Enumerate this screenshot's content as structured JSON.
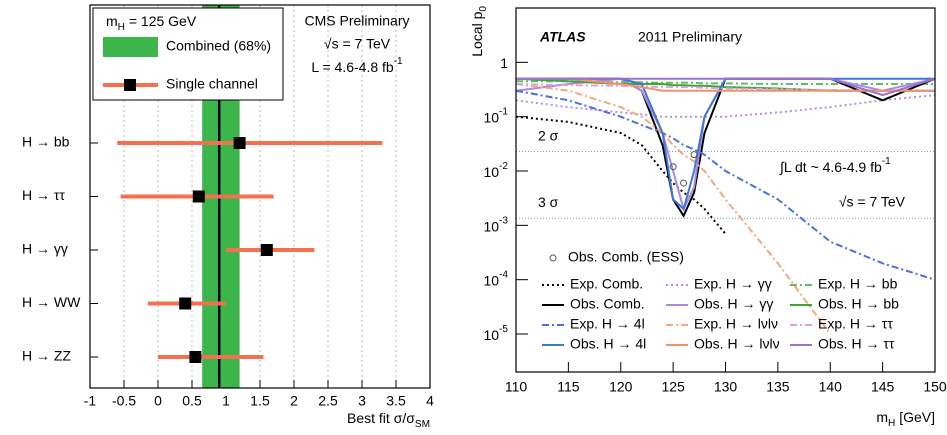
{
  "chart_data": [
    {
      "type": "errorbar",
      "categories": [
        "H → bb",
        "H → ττ",
        "H → γγ",
        "H → WW",
        "H → ZZ"
      ],
      "series": [
        {
          "name": "Single channel",
          "color": "#f4704f",
          "values": [
            1.2,
            0.6,
            1.6,
            0.4,
            0.55
          ],
          "low": [
            -0.6,
            -0.55,
            1.0,
            -0.15,
            0.0
          ],
          "high": [
            3.3,
            1.7,
            2.3,
            1.0,
            1.55
          ]
        }
      ],
      "band": {
        "name": "Combined  (68%)",
        "color": "#3cb54a",
        "low": 0.65,
        "high": 1.2,
        "value": 0.9
      },
      "annotations": {
        "legend_title": [
          "m",
          {
            "sub": "H"
          },
          " = 125 GeV"
        ],
        "experiment": "CMS Preliminary",
        "energy": "√s = 7 TeV",
        "lumi": [
          "L = 4.6-4.8 fb",
          {
            "sup": "-1"
          }
        ]
      },
      "xlabel": [
        "Best fit σ/σ",
        {
          "sub": "SM"
        }
      ],
      "xlim": [
        -1,
        4
      ],
      "xticks": [
        -1,
        -0.5,
        0,
        0.5,
        1,
        1.5,
        2,
        2.5,
        3,
        3.5,
        4
      ],
      "grid": true
    },
    {
      "type": "line",
      "annotations": {
        "experiment": "ATLAS",
        "subtitle": "2011 Preliminary",
        "lumi": [
          "∫",
          "L dt ~ 4.6-4.9 fb",
          {
            "sup": "-1"
          }
        ],
        "energy": "√s = 7 TeV"
      },
      "ylabel": [
        "Local p",
        {
          "sub": "0"
        }
      ],
      "xlabel": [
        "m",
        {
          "sub": "H"
        },
        " [GeV]"
      ],
      "log_y": true,
      "xlim": [
        110,
        150
      ],
      "ylim": [
        2e-06,
        10
      ],
      "xticks": [
        110,
        115,
        120,
        125,
        130,
        135,
        140,
        145,
        150
      ],
      "yticks": [
        {
          "value": 1e-05,
          "label": [
            "10",
            {
              "sup": "-5"
            }
          ]
        },
        {
          "value": 0.0001,
          "label": [
            "10",
            {
              "sup": "-4"
            }
          ]
        },
        {
          "value": 0.001,
          "label": [
            "10",
            {
              "sup": "-3"
            }
          ]
        },
        {
          "value": 0.01,
          "label": [
            "10",
            {
              "sup": "-2"
            }
          ]
        },
        {
          "value": 0.1,
          "label": [
            "10",
            {
              "sup": "-1"
            }
          ]
        },
        1
      ],
      "reference_lines": [
        {
          "value": 0.0228,
          "label": "2 σ"
        },
        {
          "value": 0.00135,
          "label": "3 σ"
        }
      ],
      "x": [
        110,
        115,
        120,
        122,
        124,
        125,
        126,
        127,
        128,
        130,
        135,
        140,
        145,
        150
      ],
      "series": [
        {
          "name": "Exp. Comb.",
          "color": "#000000",
          "dash": "dotted",
          "values": [
            0.1,
            0.08,
            0.05,
            0.03,
            0.01,
            0.006,
            0.004,
            0.003,
            0.002,
            0.0007,
            null,
            null,
            null,
            null
          ]
        },
        {
          "name": "Exp. H → γγ",
          "color": "#b98ce6",
          "dash": "dotted",
          "values": [
            0.2,
            0.15,
            0.12,
            0.11,
            0.1,
            0.1,
            0.1,
            0.1,
            0.1,
            0.1,
            0.12,
            0.15,
            0.2,
            0.25
          ]
        },
        {
          "name": "Exp. H → bb",
          "color": "#5fbf5f",
          "dash": "dashdot",
          "values": [
            0.45,
            0.45,
            0.43,
            0.43,
            0.42,
            0.42,
            0.42,
            0.42,
            0.41,
            0.41,
            0.4,
            0.4,
            0.4,
            0.4
          ]
        },
        {
          "name": "Obs. Comb.",
          "color": "#000000",
          "dash": "solid",
          "values": [
            0.5,
            0.5,
            0.5,
            0.3,
            0.03,
            0.003,
            0.0015,
            0.004,
            0.05,
            0.5,
            0.5,
            0.5,
            0.2,
            0.5
          ]
        },
        {
          "name": "Obs. H → γγ",
          "color": "#a98ae0",
          "dash": "solid",
          "values": [
            0.3,
            0.4,
            0.5,
            0.3,
            0.05,
            0.01,
            0.002,
            0.005,
            0.1,
            0.5,
            0.5,
            0.5,
            0.3,
            0.5
          ]
        },
        {
          "name": "Obs. H → bb",
          "color": "#3aa63a",
          "dash": "solid",
          "values": [
            0.5,
            0.45,
            0.4,
            0.4,
            0.4,
            0.38,
            0.38,
            0.37,
            0.37,
            0.35,
            0.33,
            0.3,
            0.3,
            0.3
          ]
        },
        {
          "name": "Exp. H → 4l",
          "color": "#4a6fe0",
          "dash": "dashdot",
          "values": [
            0.3,
            0.2,
            0.1,
            0.07,
            0.05,
            0.04,
            0.03,
            0.025,
            0.02,
            0.01,
            0.003,
            0.0005,
            0.0002,
            0.0001
          ]
        },
        {
          "name": "Exp. H → lνlν",
          "color": "#f5a67a",
          "dash": "dashdot",
          "values": [
            0.4,
            0.3,
            0.15,
            0.1,
            0.05,
            0.03,
            0.02,
            0.015,
            0.01,
            0.003,
            0.0002,
            1e-05,
            null,
            null
          ]
        },
        {
          "name": "Exp. H → ττ",
          "color": "#e0a0e0",
          "dash": "dashdot",
          "values": [
            0.4,
            0.38,
            0.37,
            0.36,
            0.35,
            0.35,
            0.35,
            0.35,
            0.34,
            0.33,
            0.32,
            0.31,
            0.3,
            0.3
          ]
        },
        {
          "name": "Obs. H → 4l",
          "color": "#3a78d8",
          "dash": "solid",
          "values": [
            0.5,
            0.5,
            0.5,
            0.4,
            0.05,
            0.003,
            0.002,
            0.01,
            0.1,
            0.5,
            0.5,
            0.5,
            0.5,
            0.5
          ]
        },
        {
          "name": "Obs. H → lνlν",
          "color": "#f29070",
          "dash": "solid",
          "values": [
            0.5,
            0.5,
            0.4,
            0.35,
            0.3,
            0.3,
            0.3,
            0.3,
            0.3,
            0.3,
            0.3,
            0.3,
            0.3,
            0.3
          ]
        },
        {
          "name": "Obs. H → ττ",
          "color": "#9a70d0",
          "dash": "solid",
          "values": [
            0.5,
            0.5,
            0.5,
            0.5,
            0.5,
            0.5,
            0.5,
            0.5,
            0.5,
            0.5,
            0.5,
            0.5,
            0.25,
            0.5
          ]
        }
      ],
      "markers": {
        "name": "Obs. Comb. (ESS)",
        "color": "#555555",
        "x": [
          125,
          126,
          127
        ],
        "values": [
          0.012,
          0.006,
          0.02
        ]
      }
    }
  ]
}
